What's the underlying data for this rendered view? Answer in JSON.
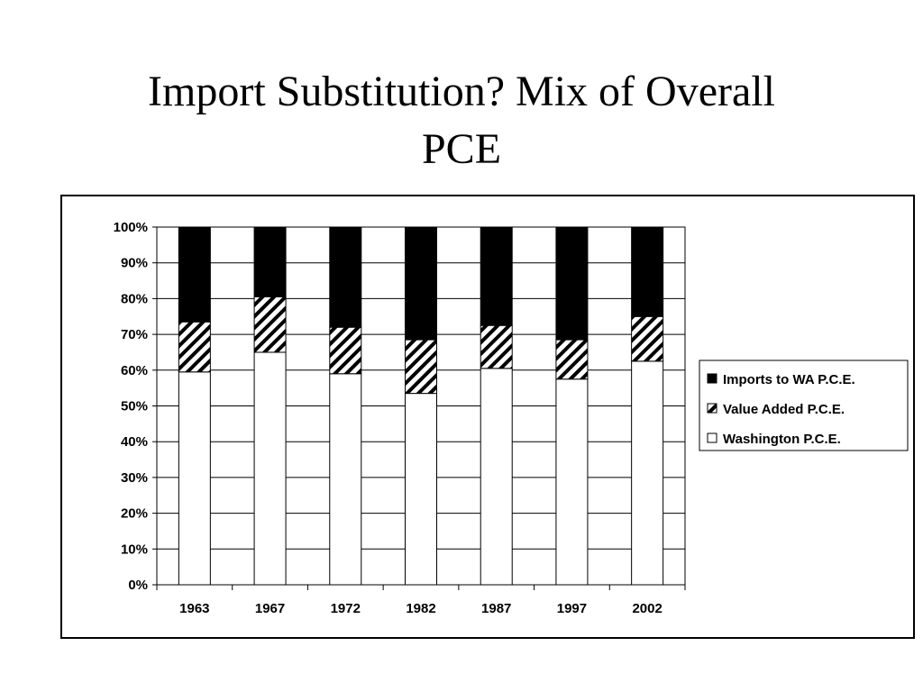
{
  "slide": {
    "title_line1": "Import Substitution?  Mix of Overall",
    "title_line2": "PCE"
  },
  "chart_data": {
    "type": "bar",
    "stacked": true,
    "percent": true,
    "categories": [
      "1963",
      "1967",
      "1972",
      "1982",
      "1987",
      "1997",
      "2002"
    ],
    "series": [
      {
        "name": "Washington P.C.E.",
        "values": [
          59.5,
          65.0,
          59.0,
          53.5,
          60.5,
          57.5,
          62.5
        ],
        "fill": "#ffffff"
      },
      {
        "name": "Value Added P.C.E.",
        "values": [
          14.0,
          15.5,
          13.0,
          15.0,
          12.0,
          11.0,
          12.5
        ],
        "fill": "hatch"
      },
      {
        "name": "Imports to WA P.C.E.",
        "values": [
          26.5,
          19.5,
          28.0,
          31.5,
          27.5,
          31.5,
          25.0
        ],
        "fill": "#000000"
      }
    ],
    "yticks": [
      "0%",
      "10%",
      "20%",
      "30%",
      "40%",
      "50%",
      "60%",
      "70%",
      "80%",
      "90%",
      "100%"
    ],
    "ylim": [
      0,
      100
    ],
    "grid": true,
    "legend_position": "right",
    "legend_order": [
      "Imports to WA P.C.E.",
      "Value Added P.C.E.",
      "Washington P.C.E."
    ]
  }
}
